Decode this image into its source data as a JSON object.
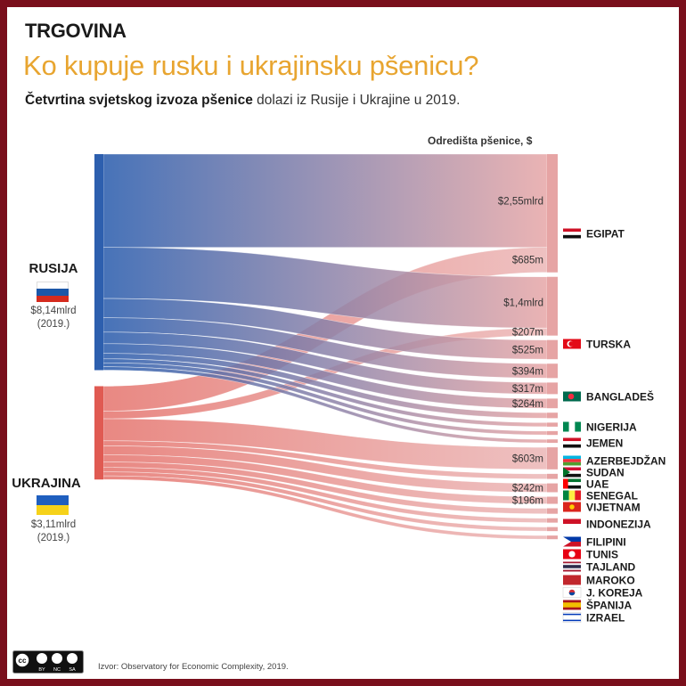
{
  "header": {
    "kicker": "TRGOVINA",
    "headline": "Ko kupuje rusku i ukrajinsku pšenicu?",
    "subtitle_bold": "Četvrtina svjetskog izvoza pšenice",
    "subtitle_rest": " dolazi iz Rusije i Ukrajine u 2019.",
    "destinations_header": "Odredišta pšenice, $"
  },
  "sources": [
    {
      "name": "RUSIJA",
      "value": "$8,14mlrd",
      "year": "(2019.)"
    },
    {
      "name": "UKRAJINA",
      "value": "$3,11mlrd",
      "year": "(2019.)"
    }
  ],
  "footer": {
    "source": "Izvor: Observatory for Economic Complexity, 2019.",
    "license": [
      "BY",
      "NC",
      "SA"
    ]
  },
  "colors": {
    "russia": "#2d5fae",
    "ukraine": "#e05a52",
    "destination_bar": "#e6a4a4",
    "frame": "#7a0f1c",
    "headline": "#e8a530"
  },
  "chart_data": {
    "type": "sankey",
    "units": "USD",
    "nodes_source": [
      "Rusija",
      "Ukrajina"
    ],
    "node_totals": {
      "Rusija": "$8,14mlrd",
      "Ukrajina": "$3,11mlrd"
    },
    "destinations": [
      {
        "name": "EGIPAT",
        "flag": "egypt-flag"
      },
      {
        "name": "TURSKA",
        "flag": "turkey-flag"
      },
      {
        "name": "BANGLADEŠ",
        "flag": "bangladesh-flag"
      },
      {
        "name": "NIGERIJA",
        "flag": "nigeria-flag"
      },
      {
        "name": "JEMEN",
        "flag": "yemen-flag"
      },
      {
        "name": "AZERBEJDŽAN",
        "flag": "azerbaijan-flag"
      },
      {
        "name": "SUDAN",
        "flag": "sudan-flag"
      },
      {
        "name": "UAE",
        "flag": "uae-flag"
      },
      {
        "name": "SENEGAL",
        "flag": "senegal-flag"
      },
      {
        "name": "VIJETNAM",
        "flag": "vietnam-flag"
      },
      {
        "name": "INDONEZIJA",
        "flag": "indonesia-flag"
      },
      {
        "name": "FILIPINI",
        "flag": "philippines-flag"
      },
      {
        "name": "TUNIS",
        "flag": "tunisia-flag"
      },
      {
        "name": "TAJLAND",
        "flag": "thailand-flag"
      },
      {
        "name": "MAROKO",
        "flag": "morocco-flag"
      },
      {
        "name": "J. KOREJA",
        "flag": "south-korea-flag"
      },
      {
        "name": "ŠPANIJA",
        "flag": "spain-flag"
      },
      {
        "name": "IZRAEL",
        "flag": "israel-flag"
      }
    ],
    "flows": [
      {
        "source": "Rusija",
        "target": "EGIPAT",
        "value": 2550,
        "label": "$2,55mlrd"
      },
      {
        "source": "Ukrajina",
        "target": "EGIPAT",
        "value": 685,
        "label": "$685m"
      },
      {
        "source": "Rusija",
        "target": "TURSKA",
        "value": 1400,
        "label": "$1,4mlrd"
      },
      {
        "source": "Ukrajina",
        "target": "TURSKA",
        "value": 207,
        "label": "$207m"
      },
      {
        "source": "Rusija",
        "target": "BANGLADEŠ",
        "value": 525,
        "label": "$525m"
      },
      {
        "source": "Rusija",
        "target": "NIGERIJA",
        "value": 394,
        "label": "$394m"
      },
      {
        "source": "Rusija",
        "target": "JEMEN",
        "value": 317,
        "label": "$317m"
      },
      {
        "source": "Rusija",
        "target": "AZERBEJDŽAN",
        "value": 264,
        "label": "$264m"
      },
      {
        "source": "Rusija",
        "target": "SUDAN",
        "value": 150
      },
      {
        "source": "Rusija",
        "target": "UAE",
        "value": 110
      },
      {
        "source": "Rusija",
        "target": "SENEGAL",
        "value": 105
      },
      {
        "source": "Rusija",
        "target": "VIJETNAM",
        "value": 95
      },
      {
        "source": "Ukrajina",
        "target": "INDONEZIJA",
        "value": 603,
        "label": "$603m"
      },
      {
        "source": "Ukrajina",
        "target": "FILIPINI",
        "value": 140
      },
      {
        "source": "Ukrajina",
        "target": "TUNIS",
        "value": 242,
        "label": "$242m"
      },
      {
        "source": "Ukrajina",
        "target": "TAJLAND",
        "value": 196,
        "label": "$196m"
      },
      {
        "source": "Ukrajina",
        "target": "MAROKO",
        "value": 150
      },
      {
        "source": "Ukrajina",
        "target": "J. KOREJA",
        "value": 120
      },
      {
        "source": "Ukrajina",
        "target": "ŠPANIJA",
        "value": 110
      },
      {
        "source": "Ukrajina",
        "target": "IZRAEL",
        "value": 100
      }
    ]
  }
}
